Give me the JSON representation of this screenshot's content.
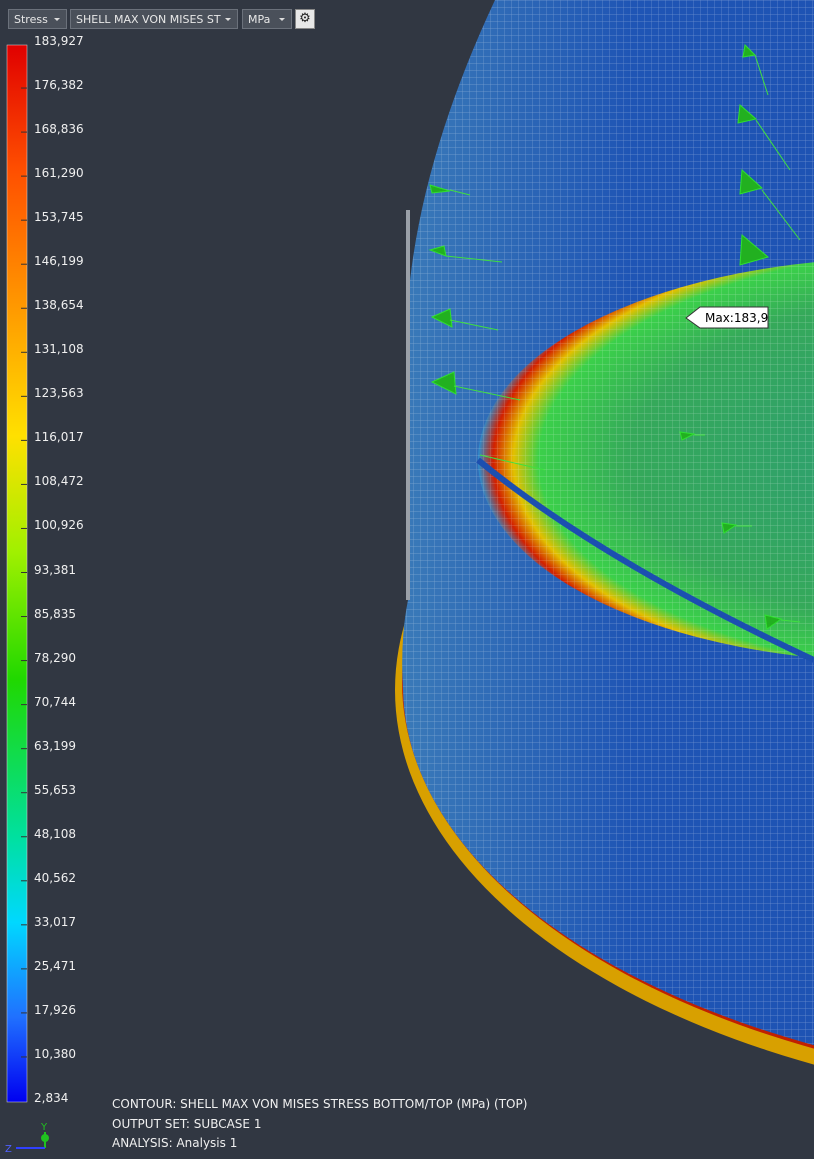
{
  "toolbar": {
    "result_type": "Stress",
    "component": "SHELL MAX VON MISES ST",
    "unit": "MPa"
  },
  "legend": {
    "labels": [
      "183,927",
      "176,382",
      "168,836",
      "161,290",
      "153,745",
      "146,199",
      "138,654",
      "131,108",
      "123,563",
      "116,017",
      "108,472",
      "100,926",
      "93,381",
      "85,835",
      "78,290",
      "70,744",
      "63,199",
      "55,653",
      "48,108",
      "40,562",
      "33,017",
      "25,471",
      "17,926",
      "10,380",
      "2,834"
    ]
  },
  "max_label": "Max:183,9",
  "info": [
    "CONTOUR: SHELL MAX VON MISES STRESS BOTTOM/TOP (MPa) (TOP)",
    "OUTPUT SET: SUBCASE 1",
    "ANALYSIS: Analysis 1"
  ],
  "triad": {
    "y": "Y",
    "z": "Z"
  }
}
